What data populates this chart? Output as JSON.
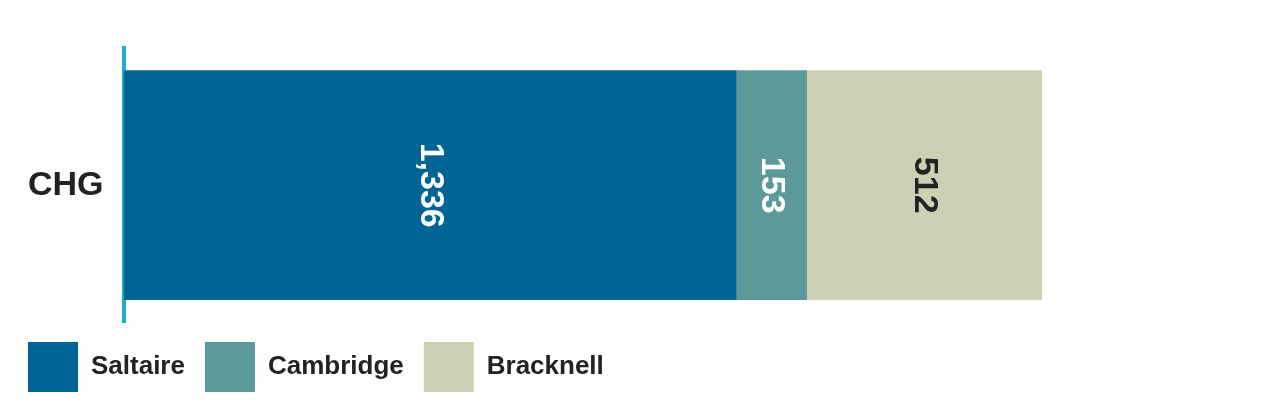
{
  "chart_data": {
    "type": "bar",
    "orientation": "horizontal",
    "stacked": true,
    "categories": [
      "CHG"
    ],
    "series": [
      {
        "name": "Saltaire",
        "color": "#006494",
        "values": [
          1336
        ],
        "value_labels": [
          "1,336"
        ]
      },
      {
        "name": "Cambridge",
        "color": "#5b9a98",
        "values": [
          153
        ],
        "value_labels": [
          "153"
        ]
      },
      {
        "name": "Bracknell",
        "color": "#cdd0b4",
        "values": [
          512
        ],
        "value_labels": [
          "512"
        ]
      }
    ],
    "legend": "bottom"
  }
}
